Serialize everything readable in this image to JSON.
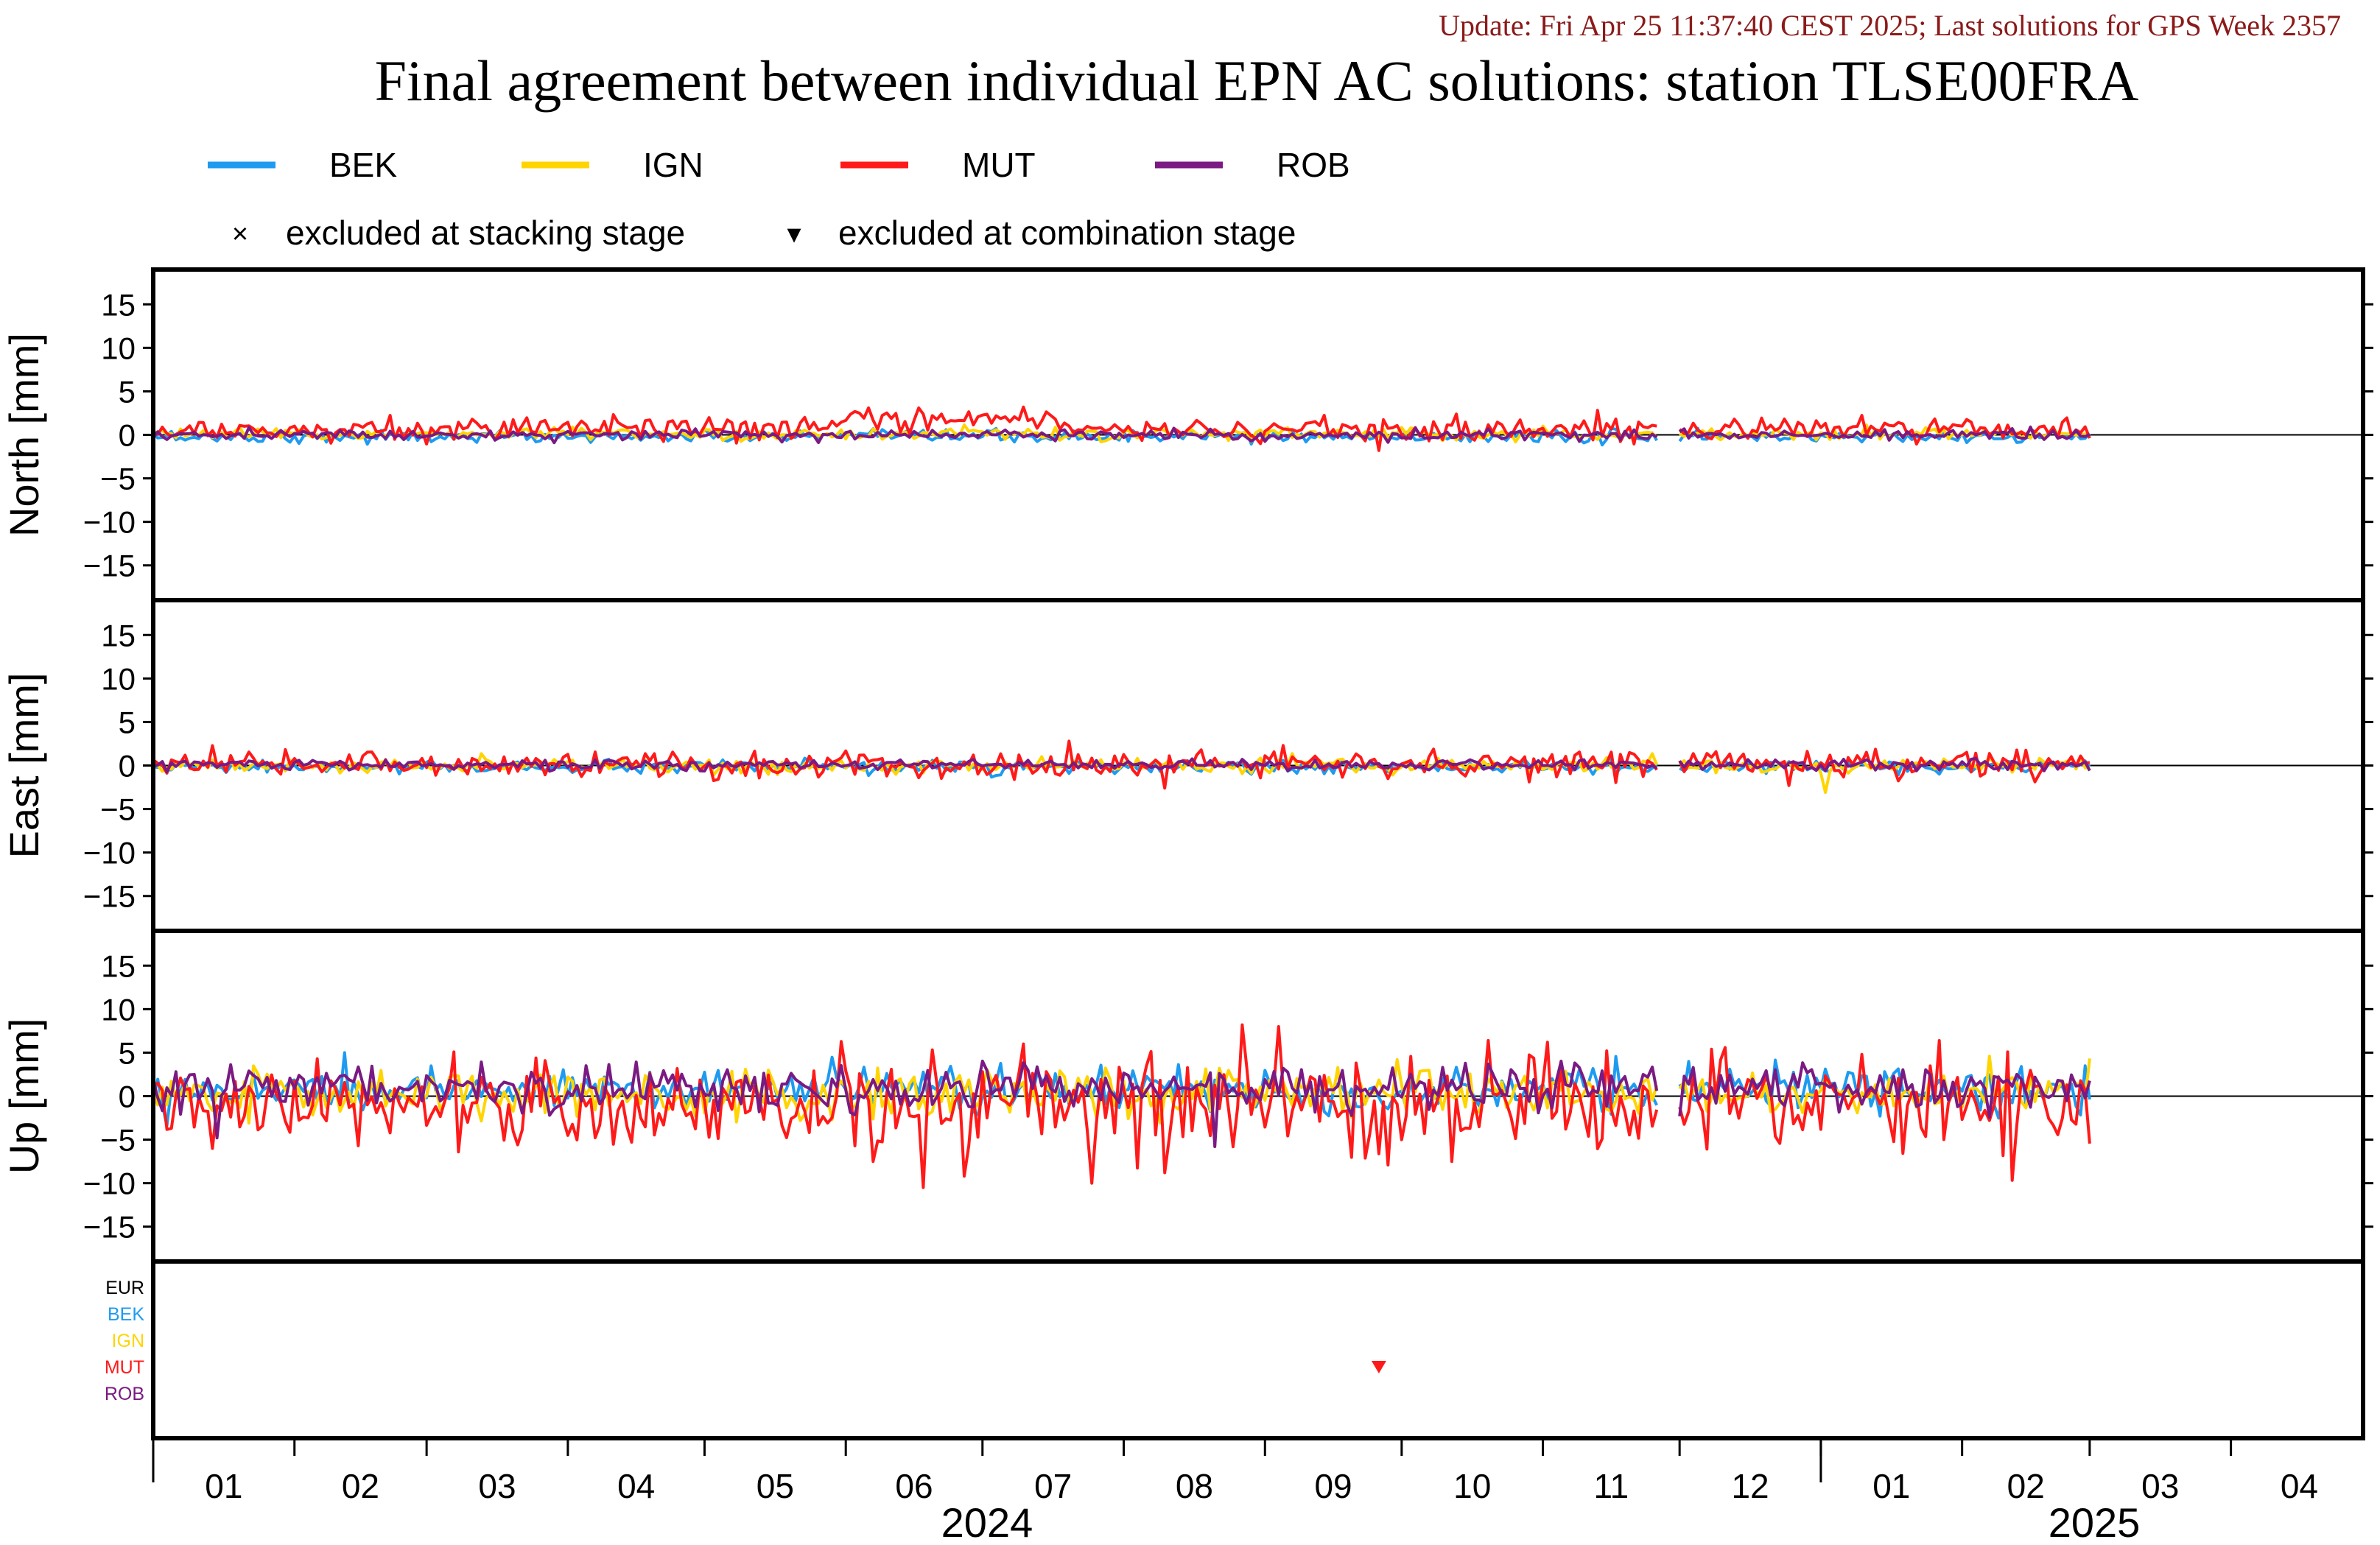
{
  "header": {
    "update": "Update: Fri Apr 25 11:37:40 CEST 2025; Last solutions for GPS Week 2357",
    "title": "Final agreement between individual EPN AC solutions: station TLSE00FRA"
  },
  "legend": {
    "series": [
      {
        "name": "BEK",
        "color": "#1e9bf0"
      },
      {
        "name": "IGN",
        "color": "#ffd400"
      },
      {
        "name": "MUT",
        "color": "#ff1a1a"
      },
      {
        "name": "ROB",
        "color": "#7a1a82"
      }
    ],
    "markers": {
      "cross": "×",
      "cross_label": "excluded at stacking stage",
      "triangle": "▾",
      "triangle_label": "excluded at combination stage"
    }
  },
  "chart_data": {
    "type": "line",
    "x_unit": "day",
    "x_start": "2024-01-01",
    "x_end": "2025-04-30",
    "data_end": "2025-03-01",
    "gap": [
      "2024-11-26",
      "2024-12-01"
    ],
    "ylim": [
      -19,
      19
    ],
    "yticks": [
      15,
      10,
      5,
      0,
      -5,
      -10,
      -15
    ],
    "panels": [
      {
        "ylabel": "North [mm]",
        "scales": {
          "BEK": 0.35,
          "IGN": 0.35,
          "MUT": 0.7,
          "ROB": 0.3
        },
        "biases": {
          "BEK": -0.2,
          "IGN": 0.1,
          "MUT": 0.7,
          "ROB": 0.0
        }
      },
      {
        "ylabel": "East [mm]",
        "scales": {
          "BEK": 0.35,
          "IGN": 0.4,
          "MUT": 0.8,
          "ROB": 0.3
        },
        "biases": {
          "BEK": -0.2,
          "IGN": 0.0,
          "MUT": 0.2,
          "ROB": 0.1
        }
      },
      {
        "ylabel": "Up [mm]",
        "scales": {
          "BEK": 1.2,
          "IGN": 1.4,
          "MUT": 2.8,
          "ROB": 1.4
        },
        "biases": {
          "BEK": 0.8,
          "IGN": 0.3,
          "MUT": -1.0,
          "ROB": 1.0
        }
      }
    ],
    "exclusion_rows": [
      {
        "label": "EUR",
        "color": "#000000"
      },
      {
        "label": "BEK",
        "color": "#1e9bf0"
      },
      {
        "label": "IGN",
        "color": "#ffd400"
      },
      {
        "label": "MUT",
        "color": "#ff1a1a"
      },
      {
        "label": "ROB",
        "color": "#7a1a82"
      }
    ],
    "exclusions": [
      {
        "date": "2024-09-26",
        "series": "MUT",
        "stage": "combination"
      }
    ],
    "x_months": [
      {
        "label": "01",
        "start": "2024-01-01"
      },
      {
        "label": "02",
        "start": "2024-02-01"
      },
      {
        "label": "03",
        "start": "2024-03-01"
      },
      {
        "label": "04",
        "start": "2024-04-01"
      },
      {
        "label": "05",
        "start": "2024-05-01"
      },
      {
        "label": "06",
        "start": "2024-06-01"
      },
      {
        "label": "07",
        "start": "2024-07-01"
      },
      {
        "label": "08",
        "start": "2024-08-01"
      },
      {
        "label": "09",
        "start": "2024-09-01"
      },
      {
        "label": "10",
        "start": "2024-10-01"
      },
      {
        "label": "11",
        "start": "2024-11-01"
      },
      {
        "label": "12",
        "start": "2024-12-01"
      },
      {
        "label": "01",
        "start": "2025-01-01"
      },
      {
        "label": "02",
        "start": "2025-02-01"
      },
      {
        "label": "03",
        "start": "2025-03-01"
      },
      {
        "label": "04",
        "start": "2025-04-01"
      }
    ],
    "x_years": [
      {
        "label": "2024",
        "start": "2024-01-01",
        "end": "2025-01-01"
      },
      {
        "label": "2025",
        "start": "2025-01-01",
        "end": "2025-05-01"
      }
    ],
    "spikes": [
      {
        "panel": 2,
        "series": "MUT",
        "date": "2024-06-18",
        "value": -10.5
      },
      {
        "panel": 2,
        "series": "MUT",
        "date": "2024-06-27",
        "value": -9.2
      },
      {
        "panel": 2,
        "series": "MUT",
        "date": "2024-07-25",
        "value": -10.0
      },
      {
        "panel": 2,
        "series": "MUT",
        "date": "2024-08-10",
        "value": -8.8
      },
      {
        "panel": 2,
        "series": "MUT",
        "date": "2024-08-27",
        "value": 8.2
      },
      {
        "panel": 2,
        "series": "MUT",
        "date": "2024-09-04",
        "value": 8.0
      },
      {
        "panel": 2,
        "series": "MUT",
        "date": "2024-07-10",
        "value": 6.0
      },
      {
        "panel": 2,
        "series": "MUT",
        "date": "2024-10-20",
        "value": 6.4
      },
      {
        "panel": 2,
        "series": "MUT",
        "date": "2024-11-02",
        "value": 6.2
      },
      {
        "panel": 2,
        "series": "MUT",
        "date": "2024-04-15",
        "value": -5.3
      },
      {
        "panel": 2,
        "series": "MUT",
        "date": "2025-01-10",
        "value": 4.8
      },
      {
        "panel": 2,
        "series": "ROB",
        "date": "2024-08-21",
        "value": -5.8
      },
      {
        "panel": 2,
        "series": "ROB",
        "date": "2024-01-15",
        "value": -4.8
      },
      {
        "panel": 2,
        "series": "BEK",
        "date": "2024-02-12",
        "value": 5.0
      },
      {
        "panel": 2,
        "series": "IGN",
        "date": "2024-09-30",
        "value": 4.2
      },
      {
        "panel": 0,
        "series": "MUT",
        "date": "2024-06-17",
        "value": 3.1
      },
      {
        "panel": 0,
        "series": "MUT",
        "date": "2024-07-10",
        "value": 3.2
      },
      {
        "panel": 0,
        "series": "MUT",
        "date": "2024-09-26",
        "value": -1.8
      },
      {
        "panel": 1,
        "series": "MUT",
        "date": "2024-07-20",
        "value": 2.8
      },
      {
        "panel": 1,
        "series": "MUT",
        "date": "2024-08-10",
        "value": -2.6
      },
      {
        "panel": 1,
        "series": "MUT",
        "date": "2024-09-05",
        "value": 2.3
      },
      {
        "panel": 1,
        "series": "IGN",
        "date": "2025-01-02",
        "value": -3.1
      },
      {
        "panel": 1,
        "series": "MUT",
        "date": "2024-12-25",
        "value": -2.3
      }
    ]
  }
}
